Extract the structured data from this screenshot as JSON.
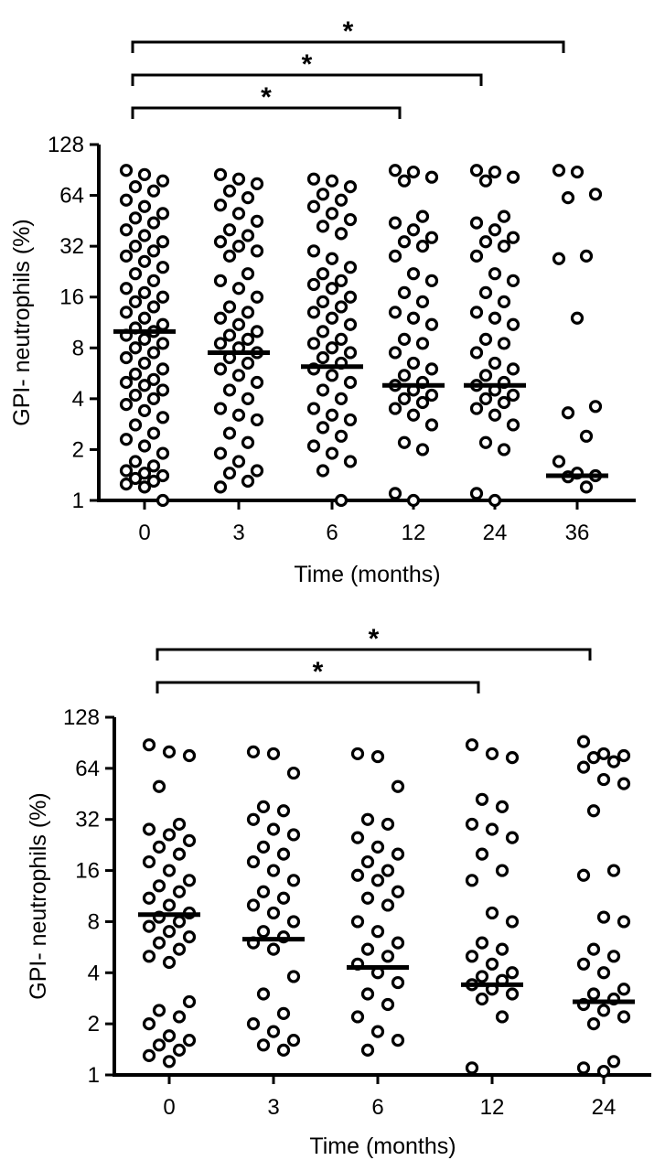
{
  "chart_data": [
    {
      "type": "scatter",
      "xlabel": "Time (months)",
      "ylabel": "GPI- neutrophils (%)",
      "yscale": "log2",
      "ylim": [
        1,
        128
      ],
      "yticks": [
        1,
        2,
        4,
        8,
        16,
        32,
        64,
        128
      ],
      "yticklabels": [
        "1",
        "2",
        "4",
        "8",
        "16",
        "32",
        "64",
        "128"
      ],
      "categories": [
        "0",
        "3",
        "6",
        "12",
        "24",
        "36"
      ],
      "marker": "open-circle",
      "color": "#000000",
      "medians": [
        10,
        7.5,
        6.2,
        4.8,
        4.8,
        1.4
      ],
      "significance": [
        {
          "from": "0",
          "to": "12",
          "label": "*"
        },
        {
          "from": "0",
          "to": "24",
          "label": "*"
        },
        {
          "from": "0",
          "to": "36",
          "label": "*"
        }
      ],
      "groups": [
        {
          "x": "0",
          "values": [
            90,
            85,
            78,
            72,
            68,
            60,
            55,
            50,
            47,
            44,
            40,
            37,
            34,
            32,
            30,
            28,
            26,
            24,
            22,
            20,
            18,
            17,
            16,
            15,
            14,
            13,
            12,
            11,
            10.5,
            10,
            9.5,
            9,
            8.5,
            8,
            7.5,
            7,
            6.5,
            6,
            5.6,
            5.2,
            5,
            4.8,
            4.5,
            4.2,
            4,
            3.7,
            3.4,
            3.1,
            2.8,
            2.5,
            2.3,
            2.1,
            1.9,
            1.7,
            1.6,
            1.5,
            1.45,
            1.4,
            1.35,
            1.3,
            1.25,
            1.2,
            1
          ]
        },
        {
          "x": "3",
          "values": [
            85,
            80,
            75,
            68,
            62,
            56,
            50,
            45,
            40,
            37,
            34,
            32,
            30,
            28,
            22,
            20,
            18,
            16,
            14,
            13,
            12,
            11,
            10,
            9.5,
            9,
            8.5,
            8,
            7.5,
            7,
            6.5,
            6,
            5.5,
            5,
            4.5,
            4,
            3.5,
            3.2,
            3,
            2.5,
            2.2,
            1.9,
            1.7,
            1.5,
            1.45,
            1.3,
            1.2
          ]
        },
        {
          "x": "6",
          "values": [
            80,
            78,
            72,
            65,
            60,
            55,
            50,
            46,
            42,
            38,
            30,
            27,
            24,
            22,
            20,
            19,
            18,
            16,
            15,
            14,
            13,
            12,
            11,
            10,
            9,
            8.5,
            8,
            7.5,
            7,
            6.5,
            6,
            5.5,
            5,
            4.5,
            4,
            3.5,
            3.2,
            3,
            2.7,
            2.4,
            2.1,
            1.9,
            1.7,
            1.5,
            1
          ]
        },
        {
          "x": "12",
          "values": [
            90,
            88,
            82,
            78,
            48,
            44,
            40,
            36,
            34,
            32,
            28,
            22,
            20,
            17,
            15,
            13,
            12,
            11,
            9,
            8.5,
            7.5,
            6.5,
            6,
            5.5,
            5,
            4.8,
            4.5,
            4.2,
            4,
            3.8,
            3.5,
            3.2,
            2.8,
            2.2,
            2,
            1.1,
            1
          ]
        },
        {
          "x": "24",
          "values": [
            90,
            88,
            82,
            78,
            48,
            44,
            40,
            36,
            34,
            32,
            28,
            22,
            20,
            17,
            15,
            13,
            12,
            11,
            9,
            8.5,
            7.5,
            6.5,
            6,
            5.5,
            5,
            4.8,
            4.5,
            4.2,
            4,
            3.8,
            3.5,
            3.2,
            2.8,
            2.2,
            2,
            1.1,
            1
          ]
        },
        {
          "x": "36",
          "values": [
            90,
            88,
            65,
            62,
            28,
            27,
            12,
            3.6,
            3.3,
            2.4,
            1.7,
            1.45,
            1.4,
            1.38,
            1.2
          ]
        }
      ]
    },
    {
      "type": "scatter",
      "xlabel": "Time (months)",
      "ylabel": "GPI- neutrophils (%)",
      "yscale": "log2",
      "ylim": [
        1,
        128
      ],
      "yticks": [
        1,
        2,
        4,
        8,
        16,
        32,
        64,
        128
      ],
      "yticklabels": [
        "1",
        "2",
        "4",
        "8",
        "16",
        "32",
        "64",
        "128"
      ],
      "categories": [
        "0",
        "3",
        "6",
        "12",
        "24"
      ],
      "marker": "open-circle",
      "color": "#000000",
      "medians": [
        8.8,
        6.3,
        4.3,
        3.4,
        2.7
      ],
      "significance": [
        {
          "from": "0",
          "to": "12",
          "label": "*"
        },
        {
          "from": "0",
          "to": "24",
          "label": "*"
        }
      ],
      "groups": [
        {
          "x": "0",
          "values": [
            88,
            80,
            76,
            50,
            30,
            28,
            26,
            24,
            22,
            20,
            18,
            16,
            14,
            13,
            12,
            11,
            10,
            9,
            8.5,
            8,
            7.5,
            7,
            6.5,
            6,
            5.5,
            5,
            4.6,
            2.7,
            2.4,
            2.2,
            2,
            1.7,
            1.6,
            1.5,
            1.4,
            1.3,
            1.2
          ]
        },
        {
          "x": "3",
          "values": [
            80,
            78,
            60,
            38,
            36,
            32,
            28,
            26,
            22,
            20,
            18,
            16,
            14,
            12,
            11,
            10,
            9,
            8,
            7,
            6.5,
            6,
            5.5,
            3.8,
            3,
            2.3,
            2,
            1.8,
            1.6,
            1.5,
            1.4
          ]
        },
        {
          "x": "6",
          "values": [
            78,
            75,
            50,
            32,
            30,
            25,
            22,
            20,
            18,
            16,
            15,
            14,
            12,
            11,
            10,
            8,
            7,
            6,
            5.5,
            5,
            4.5,
            4,
            3.5,
            3,
            2.6,
            2.2,
            1.8,
            1.6,
            1.4
          ]
        },
        {
          "x": "12",
          "values": [
            88,
            78,
            74,
            42,
            38,
            30,
            28,
            25,
            20,
            16,
            14,
            9,
            8,
            6,
            5.5,
            5,
            4.5,
            4,
            3.8,
            3.6,
            3.4,
            3.2,
            3,
            2.8,
            2.2,
            1.1
          ]
        },
        {
          "x": "24",
          "values": [
            92,
            78,
            76,
            74,
            70,
            65,
            55,
            52,
            36,
            16,
            15,
            8.5,
            8,
            5.5,
            5,
            4.5,
            4,
            3.2,
            3,
            2.8,
            2.6,
            2.4,
            2.2,
            2,
            1.2,
            1.1,
            1.05
          ]
        }
      ]
    }
  ]
}
